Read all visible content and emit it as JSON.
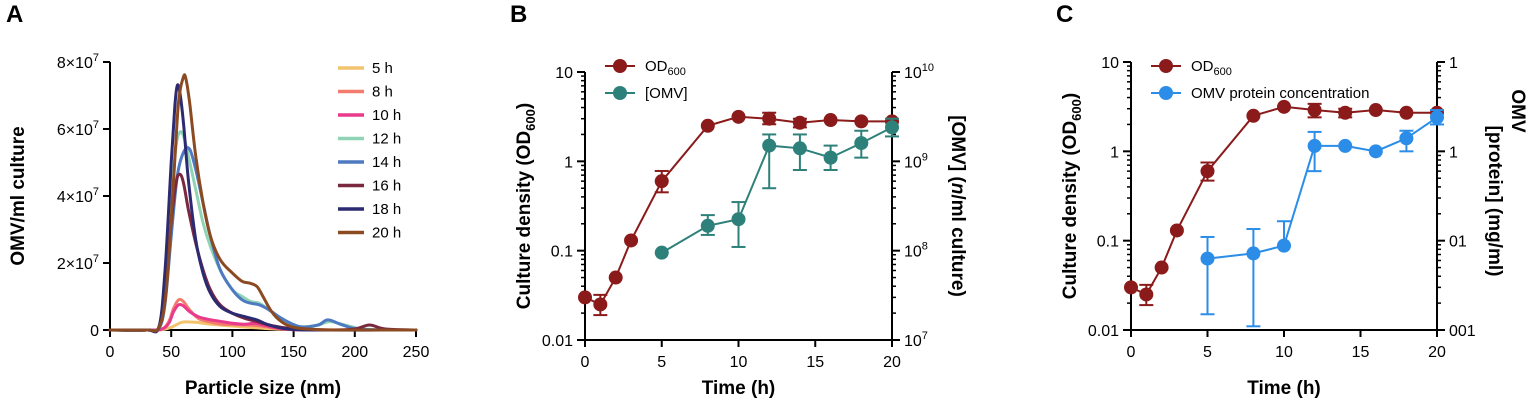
{
  "chart_data": [
    {
      "panel": "A",
      "type": "line",
      "xlabel": "Particle size (nm)",
      "ylabel": "OMV/ml culture",
      "xlim": [
        0,
        250
      ],
      "ylim": [
        0,
        80000000
      ],
      "xticks": [
        "0",
        "50",
        "100",
        "150",
        "200",
        "250"
      ],
      "yticks": [
        {
          "value": 0,
          "mant": "0",
          "exp": ""
        },
        {
          "value": 20000000,
          "mant": "2×10",
          "exp": "7"
        },
        {
          "value": 40000000,
          "mant": "4×10",
          "exp": "7"
        },
        {
          "value": 60000000,
          "mant": "6×10",
          "exp": "7"
        },
        {
          "value": 80000000,
          "mant": "8×10",
          "exp": "7"
        }
      ],
      "legend_position": "top-right",
      "series": [
        {
          "name": "5 h",
          "color": "#f2c46d",
          "x": [
            0,
            30,
            42,
            50,
            55,
            60,
            70,
            80,
            95,
            110,
            125,
            140,
            160,
            200,
            250
          ],
          "y": [
            0,
            0,
            100000,
            800000,
            1700000,
            2400000,
            2300000,
            1800000,
            1300000,
            900000,
            500000,
            200000,
            100000,
            0,
            0
          ]
        },
        {
          "name": "8 h",
          "color": "#f47c6e",
          "x": [
            0,
            30,
            42,
            48,
            52,
            56,
            60,
            65,
            72,
            80,
            90,
            100,
            110,
            120,
            130,
            145,
            200,
            250
          ],
          "y": [
            0,
            0,
            200000,
            2500000,
            6500000,
            9000000,
            8500000,
            6000000,
            3500000,
            2500000,
            1800000,
            1600000,
            1500000,
            1300000,
            800000,
            200000,
            0,
            0
          ]
        },
        {
          "name": "10 h",
          "color": "#e93a8c",
          "x": [
            0,
            30,
            42,
            48,
            52,
            56,
            60,
            65,
            72,
            80,
            90,
            100,
            110,
            118,
            125,
            135,
            150,
            200,
            250
          ],
          "y": [
            0,
            0,
            200000,
            2000000,
            5500000,
            7500000,
            7200000,
            5500000,
            4000000,
            3200000,
            2600000,
            2000000,
            1700000,
            2000000,
            1500000,
            700000,
            100000,
            0,
            0
          ]
        },
        {
          "name": "12 h",
          "color": "#8fd4b5",
          "x": [
            0,
            30,
            40,
            45,
            50,
            54,
            57,
            60,
            64,
            70,
            76,
            82,
            90,
            100,
            108,
            115,
            122,
            130,
            140,
            155,
            170,
            180,
            195,
            210,
            250
          ],
          "y": [
            0,
            0,
            1000000,
            15000000,
            40000000,
            55000000,
            59000000,
            58000000,
            52000000,
            42000000,
            32000000,
            25000000,
            18000000,
            12000000,
            10000000,
            8500000,
            8000000,
            6000000,
            3500000,
            1000000,
            1500000,
            2500000,
            1200000,
            200000,
            0
          ]
        },
        {
          "name": "14 h",
          "color": "#4d7ac1",
          "x": [
            0,
            30,
            40,
            45,
            50,
            55,
            60,
            65,
            70,
            76,
            82,
            90,
            100,
            108,
            115,
            122,
            130,
            140,
            155,
            170,
            178,
            190,
            205,
            250
          ],
          "y": [
            0,
            0,
            500000,
            8000000,
            28000000,
            46000000,
            53000000,
            54000000,
            48000000,
            38000000,
            28000000,
            18000000,
            12000000,
            9000000,
            8000000,
            7500000,
            6000000,
            3500000,
            1000000,
            1500000,
            3000000,
            1500000,
            200000,
            0
          ]
        },
        {
          "name": "16 h",
          "color": "#7a2740",
          "x": [
            0,
            30,
            40,
            45,
            50,
            54,
            57,
            60,
            64,
            70,
            76,
            82,
            90,
            100,
            110,
            120,
            130,
            140,
            155,
            180,
            200,
            212,
            225,
            250
          ],
          "y": [
            0,
            0,
            800000,
            12000000,
            32000000,
            44000000,
            46500000,
            44000000,
            36000000,
            26000000,
            18000000,
            12000000,
            7500000,
            5000000,
            3500000,
            2500000,
            1500000,
            800000,
            300000,
            0,
            300000,
            1500000,
            300000,
            0
          ]
        },
        {
          "name": "18 h",
          "color": "#2c2a70",
          "x": [
            0,
            30,
            40,
            45,
            50,
            53,
            55,
            57,
            60,
            64,
            70,
            76,
            82,
            90,
            100,
            110,
            120,
            130,
            145,
            170,
            250
          ],
          "y": [
            0,
            0,
            1000000,
            18000000,
            50000000,
            67000000,
            73000000,
            71000000,
            62000000,
            45000000,
            27000000,
            17000000,
            11000000,
            7000000,
            5000000,
            4000000,
            3000000,
            1500000,
            300000,
            0,
            0
          ]
        },
        {
          "name": "20 h",
          "color": "#8b4a22",
          "x": [
            0,
            30,
            40,
            46,
            52,
            56,
            60,
            62,
            65,
            70,
            76,
            82,
            90,
            100,
            108,
            114,
            120,
            125,
            132,
            140,
            150,
            165,
            180,
            200,
            250
          ],
          "y": [
            0,
            0,
            800000,
            12000000,
            45000000,
            68000000,
            75500000,
            75000000,
            68000000,
            52000000,
            38000000,
            28000000,
            21000000,
            17000000,
            14500000,
            14000000,
            13000000,
            10000000,
            5500000,
            2500000,
            800000,
            200000,
            0,
            0,
            0
          ]
        }
      ]
    },
    {
      "panel": "B",
      "type": "line",
      "xlabel": "Time (h)",
      "ylabel_main": "Culture density (OD",
      "ylabel_sub": "600",
      "ylabel_tail": ")",
      "y2label_italic_pre": "[OMV] (",
      "y2label_italic": "n",
      "y2label_tail": "/ml culture)",
      "xlim": [
        0,
        20
      ],
      "ylim": [
        0.01,
        10
      ],
      "y2lim": [
        10000000,
        10000000000
      ],
      "xticks": [
        "0",
        "5",
        "10",
        "15",
        "20"
      ],
      "yticks": [
        "0.01",
        "0.1",
        "1",
        "10"
      ],
      "y2ticks": [
        {
          "mant": "10",
          "exp": "7"
        },
        {
          "mant": "10",
          "exp": "8"
        },
        {
          "mant": "10",
          "exp": "9"
        },
        {
          "mant": "10",
          "exp": "10"
        }
      ],
      "legend_position": "top-left",
      "series": [
        {
          "name": "OD",
          "name_sub": "600",
          "color": "#8b1a1a",
          "axis": "left",
          "x": [
            0,
            1,
            2,
            3,
            5,
            8,
            10,
            12,
            14,
            16,
            18,
            20
          ],
          "y": [
            0.03,
            0.025,
            0.05,
            0.13,
            0.6,
            2.5,
            3.15,
            3.0,
            2.7,
            2.9,
            2.8,
            2.8
          ],
          "err_low": [
            0.03,
            0.019,
            0.05,
            0.13,
            0.45,
            2.5,
            3.15,
            2.6,
            2.4,
            2.9,
            2.8,
            2.8
          ],
          "err_high": [
            0.03,
            0.032,
            0.05,
            0.13,
            0.78,
            2.5,
            3.15,
            3.5,
            3.0,
            2.9,
            2.8,
            2.8
          ]
        },
        {
          "name": "[OMV]",
          "color": "#2e807a",
          "axis": "right",
          "x": [
            5,
            8,
            10,
            12,
            14,
            16,
            18,
            20
          ],
          "y": [
            95000000,
            190000000,
            225000000,
            1500000000,
            1400000000,
            1100000000,
            1600000000,
            2400000000
          ],
          "err_low": [
            95000000,
            150000000,
            110000000,
            500000000,
            800000000,
            800000000,
            1100000000,
            1900000000
          ],
          "err_high": [
            95000000,
            250000000,
            350000000,
            2000000000,
            2000000000,
            1500000000,
            2200000000,
            3000000000
          ]
        }
      ]
    },
    {
      "panel": "C",
      "type": "line",
      "xlabel": "Time (h)",
      "ylabel_main": "Culture density (OD",
      "ylabel_sub": "600",
      "ylabel_tail": ")",
      "y2label_line1": "OMV",
      "y2label_line2": "[protein] (mg/ml)",
      "xlim": [
        0,
        20
      ],
      "ylim": [
        0.01,
        10
      ],
      "y2lim": [
        0.001,
        1
      ],
      "xticks": [
        "0",
        "5",
        "10",
        "15",
        "20"
      ],
      "yticks": [
        "0.01",
        "0.1",
        "1",
        "10"
      ],
      "y2ticks": [
        "001",
        "01",
        "1",
        "1"
      ],
      "legend_position": "top-left",
      "series": [
        {
          "name": "OD",
          "name_sub": "600",
          "color": "#8b1a1a",
          "axis": "left",
          "x": [
            0,
            1,
            2,
            3,
            5,
            8,
            10,
            12,
            14,
            16,
            18,
            20
          ],
          "y": [
            0.03,
            0.025,
            0.05,
            0.13,
            0.6,
            2.5,
            3.15,
            2.9,
            2.7,
            2.9,
            2.7,
            2.7
          ],
          "err_low": [
            0.03,
            0.019,
            0.05,
            0.13,
            0.47,
            2.5,
            3.15,
            2.4,
            2.4,
            2.9,
            2.7,
            2.7
          ],
          "err_high": [
            0.03,
            0.032,
            0.05,
            0.13,
            0.75,
            2.5,
            3.15,
            3.4,
            3.0,
            2.9,
            2.7,
            2.7
          ]
        },
        {
          "name": "OMV protein concentration",
          "color": "#2b8de8",
          "axis": "right",
          "x": [
            5,
            8,
            10,
            12,
            14,
            16,
            18,
            20
          ],
          "y": [
            0.0063,
            0.0072,
            0.0088,
            0.115,
            0.115,
            0.1,
            0.14,
            0.24
          ],
          "err_low": [
            0.0015,
            0.0011,
            0.0088,
            0.06,
            0.115,
            0.1,
            0.1,
            0.2
          ],
          "err_high": [
            0.011,
            0.0135,
            0.0165,
            0.165,
            0.115,
            0.1,
            0.17,
            0.29
          ]
        }
      ]
    }
  ]
}
